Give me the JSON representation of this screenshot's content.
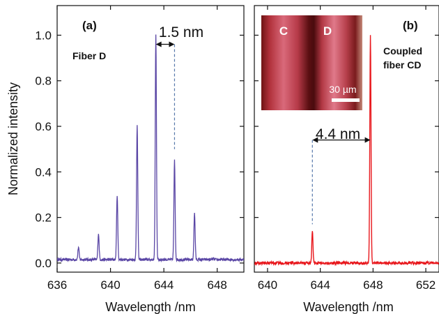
{
  "chart_data": [
    {
      "type": "line",
      "panel_label": "(a)",
      "legend_text": "Fiber D",
      "xlabel": "Wavelength /nm",
      "ylabel": "Normalized intensity",
      "xlim": [
        636,
        650
      ],
      "ylim": [
        -0.04,
        1.13
      ],
      "xticks": [
        636,
        640,
        644,
        648
      ],
      "yticks": [
        0.0,
        0.2,
        0.4,
        0.6,
        0.8,
        1.0
      ],
      "ytick_labels": [
        "0.0",
        "0.2",
        "0.4",
        "0.6",
        "0.8",
        "1.0"
      ],
      "color": "#5a46a5",
      "baseline": 0.015,
      "peaks": [
        {
          "x": 637.6,
          "y": 0.07
        },
        {
          "x": 639.1,
          "y": 0.13
        },
        {
          "x": 640.5,
          "y": 0.3
        },
        {
          "x": 642.0,
          "y": 0.61
        },
        {
          "x": 643.4,
          "y": 1.0
        },
        {
          "x": 644.8,
          "y": 0.45
        },
        {
          "x": 646.3,
          "y": 0.22
        },
        {
          "x": 647.7,
          "y": 0.02
        }
      ],
      "annotation": {
        "text": "1.5 nm",
        "x1": 643.4,
        "x2": 644.8,
        "y": 0.96,
        "dash_x": 644.8,
        "dash_from": 0.96,
        "dash_to": 0.5
      }
    },
    {
      "type": "line",
      "panel_label": "(b)",
      "legend_text": [
        "Coupled",
        "fiber CD"
      ],
      "xlabel": "Wavelength /nm",
      "xlim": [
        639,
        653
      ],
      "ylim": [
        -0.04,
        1.13
      ],
      "xticks": [
        640,
        644,
        648,
        652
      ],
      "yticks": [
        0.0,
        0.2,
        0.4,
        0.6,
        0.8,
        1.0
      ],
      "color": "#e8161b",
      "baseline": 0.0,
      "peaks": [
        {
          "x": 643.4,
          "y": 0.14
        },
        {
          "x": 647.8,
          "y": 1.0
        }
      ],
      "annotation": {
        "text": "4.4 nm",
        "x1": 643.4,
        "x2": 647.8,
        "y": 0.54,
        "dash_x": 643.4,
        "dash_from": 0.54,
        "dash_to": 0.17
      },
      "inset": {
        "labels": [
          "C",
          "D"
        ],
        "scale_bar": "30 µm"
      }
    }
  ]
}
